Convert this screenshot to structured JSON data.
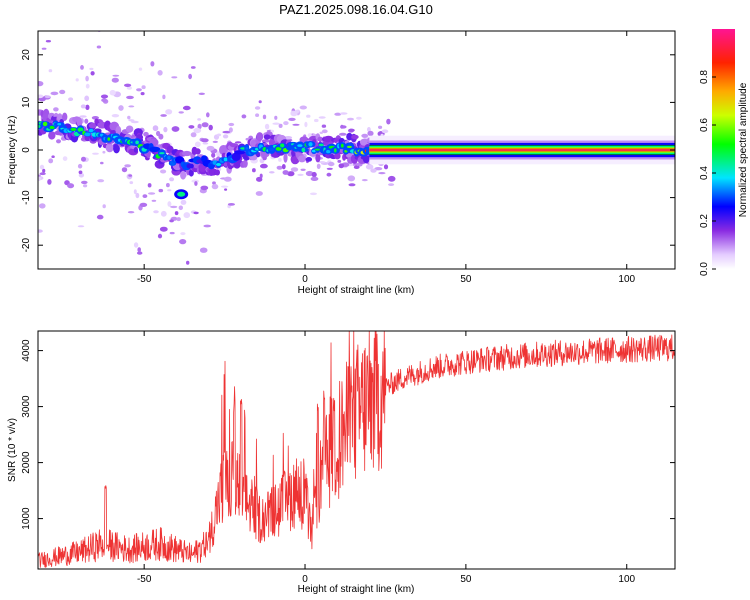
{
  "title": "PAZ1.2025.098.16.04.G10",
  "chart_data": [
    {
      "type": "heatmap",
      "xlabel": "Height of straight line (km)",
      "ylabel": "Frequency (Hz)",
      "xlim": [
        -83,
        115
      ],
      "ylim": [
        -25,
        25
      ],
      "xticks": [
        -50,
        0,
        50,
        100
      ],
      "yticks": [
        -20,
        -10,
        0,
        10,
        20
      ],
      "colorbar": {
        "label": "Normalized spectral amplitude",
        "range": [
          0,
          1
        ],
        "ticks": [
          0.0,
          0.2,
          0.4,
          0.6,
          0.8
        ],
        "tick_labels": [
          "0.0",
          "0.2",
          "0.4",
          "0.6",
          "0.8"
        ]
      },
      "ridge": {
        "x": [
          -83,
          -75,
          -65,
          -55,
          -48,
          -42,
          -38,
          -32,
          -28,
          -22,
          -15,
          -8,
          -2,
          2,
          8,
          15,
          20,
          30,
          115
        ],
        "frequency": [
          5.5,
          4.5,
          3.5,
          2,
          0,
          -2,
          -3,
          -2,
          -3,
          -1,
          0.5,
          0.5,
          0.5,
          0.5,
          0.3,
          0.3,
          0,
          0,
          0
        ],
        "amplitude": [
          0.5,
          0.6,
          0.5,
          0.5,
          0.5,
          0.45,
          0.3,
          0.35,
          0.35,
          0.4,
          0.5,
          0.55,
          0.5,
          0.5,
          0.55,
          0.65,
          0.9,
          1,
          1
        ]
      }
    },
    {
      "type": "line",
      "xlabel": "Height of straight line (km)",
      "ylabel": "SNR (10 * v/v)",
      "xlim": [
        -83,
        115
      ],
      "ylim": [
        100,
        4350
      ],
      "xticks": [
        -50,
        0,
        50,
        100
      ],
      "yticks": [
        1000,
        2000,
        3000,
        4000
      ],
      "series": [
        {
          "color": "#ee3333",
          "envelope": {
            "x": [
              -83,
              -70,
              -63,
              -55,
              -45,
              -35,
              -30,
              -26,
              -22,
              -18,
              -14,
              -10,
              -6,
              -3,
              0,
              2,
              4,
              6,
              10,
              15,
              20,
              25,
              30,
              40,
              50,
              60,
              70,
              80,
              90,
              100,
              115
            ],
            "y": [
              250,
              400,
              550,
              450,
              550,
              350,
              600,
              1500,
              1700,
              1300,
              1000,
              1100,
              1300,
              1500,
              1400,
              700,
              1500,
              1900,
              2400,
              2800,
              3100,
              3350,
              3500,
              3700,
              3800,
              3870,
              3920,
              3960,
              3990,
              4020,
              4050
            ]
          },
          "spikes": [
            {
              "x": -62,
              "y": 1600
            },
            {
              "x": -25,
              "y": 3850
            },
            {
              "x": -22,
              "y": 3200
            },
            {
              "x": -20,
              "y": 3300
            },
            {
              "x": -15,
              "y": 2500
            },
            {
              "x": -10,
              "y": 2400
            },
            {
              "x": 4,
              "y": 3100
            },
            {
              "x": 6,
              "y": 3300
            },
            {
              "x": 9,
              "y": 3200
            },
            {
              "x": 14,
              "y": 3400
            }
          ]
        }
      ]
    }
  ]
}
